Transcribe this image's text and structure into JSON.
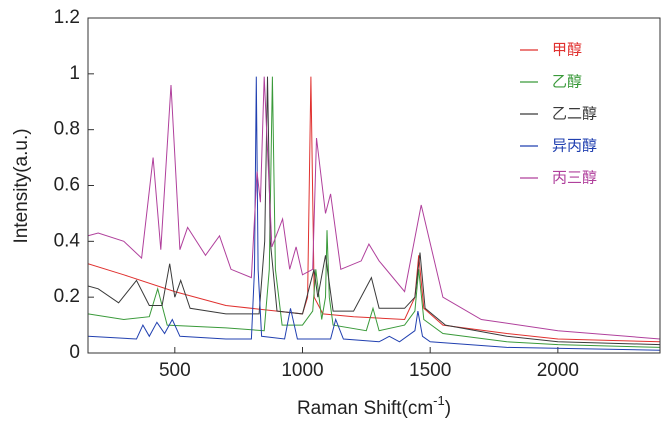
{
  "chart_data": {
    "type": "line",
    "ylabel": "Intensity(a.u.)",
    "xlabel": {
      "text": "Raman Shift(cm",
      "superscript": "-1",
      "suffix": ")"
    },
    "xlim": [
      160,
      2400
    ],
    "xticks": [
      500,
      1000,
      1500,
      2000
    ],
    "ylim": [
      0,
      1.2
    ],
    "yticks": [
      0,
      0.2,
      0.4,
      0.6,
      0.8,
      1,
      1.2
    ],
    "grid": false,
    "legend": "upper right",
    "series": [
      {
        "name": "甲醇",
        "color": "#e0312f",
        "x": [
          160,
          300,
          500,
          700,
          900,
          1000,
          1020,
          1033,
          1046,
          1080,
          1200,
          1400,
          1440,
          1455,
          1475,
          1550,
          1800,
          2000,
          2400
        ],
        "values": [
          0.32,
          0.28,
          0.22,
          0.17,
          0.15,
          0.14,
          0.2,
          0.99,
          0.2,
          0.14,
          0.13,
          0.12,
          0.2,
          0.35,
          0.16,
          0.1,
          0.07,
          0.05,
          0.04
        ]
      },
      {
        "name": "乙醇",
        "color": "#3a9a3a",
        "x": [
          160,
          300,
          400,
          433,
          470,
          700,
          850,
          870,
          882,
          894,
          920,
          1000,
          1040,
          1052,
          1075,
          1090,
          1096,
          1105,
          1120,
          1250,
          1276,
          1300,
          1400,
          1440,
          1455,
          1475,
          1550,
          1800,
          2000,
          2400
        ],
        "values": [
          0.14,
          0.12,
          0.13,
          0.23,
          0.1,
          0.09,
          0.08,
          0.3,
          0.99,
          0.3,
          0.1,
          0.1,
          0.15,
          0.3,
          0.12,
          0.2,
          0.44,
          0.2,
          0.1,
          0.08,
          0.16,
          0.08,
          0.1,
          0.15,
          0.3,
          0.12,
          0.07,
          0.04,
          0.03,
          0.02
        ]
      },
      {
        "name": "乙二醇",
        "color": "#3a3a3a",
        "x": [
          160,
          200,
          280,
          350,
          400,
          450,
          480,
          500,
          523,
          560,
          700,
          830,
          852,
          863,
          874,
          900,
          1000,
          1045,
          1060,
          1090,
          1120,
          1200,
          1270,
          1300,
          1400,
          1440,
          1460,
          1480,
          1560,
          1800,
          2000,
          2400
        ],
        "values": [
          0.24,
          0.23,
          0.18,
          0.26,
          0.17,
          0.17,
          0.32,
          0.2,
          0.26,
          0.16,
          0.14,
          0.14,
          0.4,
          0.99,
          0.4,
          0.15,
          0.14,
          0.3,
          0.2,
          0.35,
          0.15,
          0.15,
          0.27,
          0.16,
          0.16,
          0.2,
          0.36,
          0.16,
          0.1,
          0.06,
          0.04,
          0.03
        ]
      },
      {
        "name": "异丙醇",
        "color": "#2140b0",
        "x": [
          160,
          350,
          375,
          400,
          430,
          460,
          490,
          520,
          700,
          800,
          812,
          819,
          826,
          840,
          930,
          953,
          980,
          1110,
          1130,
          1160,
          1300,
          1340,
          1380,
          1440,
          1452,
          1470,
          1500,
          1800,
          2400
        ],
        "values": [
          0.06,
          0.05,
          0.1,
          0.06,
          0.11,
          0.07,
          0.12,
          0.06,
          0.05,
          0.05,
          0.3,
          0.99,
          0.3,
          0.06,
          0.05,
          0.16,
          0.05,
          0.05,
          0.12,
          0.05,
          0.04,
          0.06,
          0.04,
          0.08,
          0.15,
          0.06,
          0.04,
          0.02,
          0.01
        ]
      },
      {
        "name": "丙三醇",
        "color": "#b0409c",
        "x": [
          160,
          200,
          300,
          370,
          415,
          445,
          485,
          520,
          550,
          620,
          675,
          720,
          800,
          822,
          835,
          850,
          880,
          922,
          950,
          975,
          1000,
          1040,
          1055,
          1090,
          1110,
          1150,
          1230,
          1260,
          1300,
          1400,
          1465,
          1550,
          1700,
          2000,
          2400
        ],
        "values": [
          0.42,
          0.43,
          0.4,
          0.34,
          0.7,
          0.37,
          0.96,
          0.37,
          0.45,
          0.35,
          0.42,
          0.3,
          0.27,
          0.65,
          0.54,
          0.99,
          0.38,
          0.48,
          0.3,
          0.38,
          0.28,
          0.3,
          0.77,
          0.5,
          0.57,
          0.3,
          0.33,
          0.39,
          0.33,
          0.22,
          0.53,
          0.2,
          0.12,
          0.08,
          0.05
        ]
      }
    ]
  }
}
